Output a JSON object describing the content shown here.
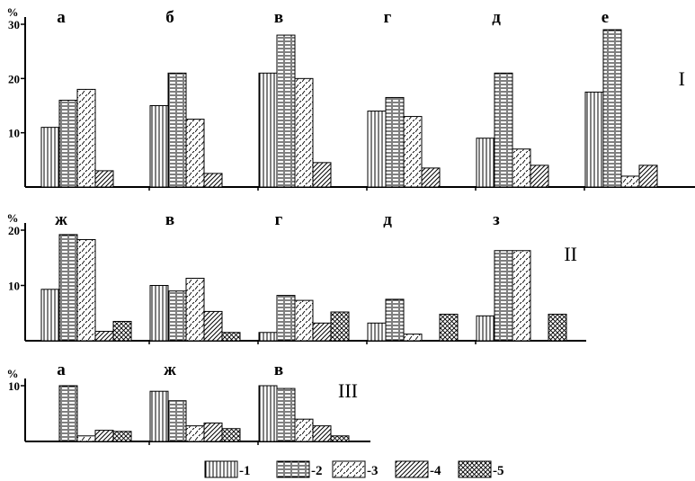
{
  "legend": [
    "-1",
    "-2",
    "-3",
    "-4",
    "-5"
  ],
  "chart_data": [
    {
      "type": "bar",
      "panel_label": "I",
      "y_unit": "%",
      "ylim": [
        0,
        30
      ],
      "yticks": [
        10,
        20,
        30
      ],
      "groups": [
        {
          "label": "а",
          "values": [
            11,
            16,
            18,
            3,
            null
          ]
        },
        {
          "label": "б",
          "values": [
            15,
            21,
            12.5,
            2.5,
            null
          ]
        },
        {
          "label": "в",
          "values": [
            21,
            28,
            20,
            4.5,
            null
          ]
        },
        {
          "label": "г",
          "values": [
            14,
            16.5,
            13,
            3.5,
            null
          ]
        },
        {
          "label": "д",
          "values": [
            9,
            21,
            7,
            4,
            null
          ]
        },
        {
          "label": "е",
          "values": [
            17.5,
            29,
            2,
            4,
            null
          ]
        }
      ]
    },
    {
      "type": "bar",
      "panel_label": "II",
      "y_unit": "%",
      "ylim": [
        0,
        20
      ],
      "yticks": [
        10,
        20
      ],
      "groups": [
        {
          "label": "ж",
          "values": [
            9.3,
            19.2,
            18.3,
            1.7,
            3.5
          ]
        },
        {
          "label": "в",
          "values": [
            10,
            9,
            11.3,
            5.3,
            1.5
          ]
        },
        {
          "label": "г",
          "values": [
            1.5,
            8.2,
            7.3,
            3.2,
            5.2
          ]
        },
        {
          "label": "д",
          "values": [
            3.2,
            7.5,
            1.2,
            null,
            4.8
          ]
        },
        {
          "label": "з",
          "values": [
            4.5,
            16.3,
            16.3,
            null,
            4.8
          ]
        }
      ]
    },
    {
      "type": "bar",
      "panel_label": "III",
      "y_unit": "%",
      "ylim": [
        0,
        10
      ],
      "yticks": [
        10
      ],
      "groups": [
        {
          "label": "а",
          "values": [
            null,
            10,
            1,
            2,
            1.8
          ]
        },
        {
          "label": "ж",
          "values": [
            9,
            7.3,
            2.8,
            3.3,
            2.3
          ]
        },
        {
          "label": "в",
          "values": [
            10,
            9.5,
            4,
            2.8,
            1
          ]
        }
      ]
    }
  ]
}
